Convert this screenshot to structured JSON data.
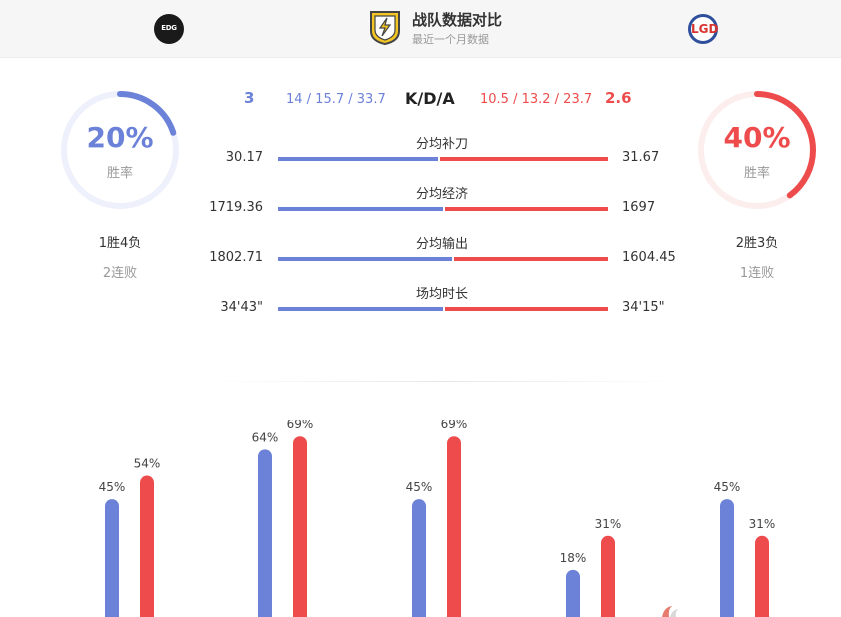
{
  "header": {
    "title": "战队数据对比",
    "subtitle": "最近一个月数据",
    "left_team_logo_text": "EDG",
    "right_team_logo_text": "LGD",
    "badge_icon": "lightning-shield-icon"
  },
  "left_team": {
    "win_rate": "20%",
    "win_rate_value": 0.2,
    "win_rate_label": "胜率",
    "record": "1胜4负",
    "streak": "2连败",
    "color": "#6b82d8"
  },
  "right_team": {
    "win_rate": "40%",
    "win_rate_value": 0.4,
    "win_rate_label": "胜率",
    "record": "2胜3负",
    "streak": "1连败",
    "color": "#ee4c4c"
  },
  "kda": {
    "label": "K/D/A",
    "left_ratio": "3",
    "left_values": "14 / 15.7 / 33.7",
    "right_values": "10.5 / 13.2 / 23.7",
    "right_ratio": "2.6"
  },
  "stats": [
    {
      "name": "分均补刀",
      "left": "30.17",
      "right": "31.67",
      "left_share": 0.488
    },
    {
      "name": "分均经济",
      "left": "1719.36",
      "right": "1697",
      "left_share": 0.503
    },
    {
      "name": "分均输出",
      "left": "1802.71",
      "right": "1604.45",
      "left_share": 0.529
    },
    {
      "name": "场均时长",
      "left": "34'43\"",
      "right": "34'15\"",
      "left_share": 0.503
    }
  ],
  "chart_data": {
    "type": "bar",
    "series": [
      {
        "values": [
          45,
          64,
          45,
          18,
          45
        ],
        "color": "#6b82d8"
      },
      {
        "values": [
          54,
          69,
          69,
          31,
          31
        ],
        "color": "#ee4c4c"
      }
    ],
    "labels": [
      [
        "45%",
        "54%"
      ],
      [
        "64%",
        "69%"
      ],
      [
        "45%",
        "69%"
      ],
      [
        "18%",
        "31%"
      ],
      [
        "45%",
        "31%"
      ]
    ],
    "ylim": [
      0,
      100
    ]
  }
}
